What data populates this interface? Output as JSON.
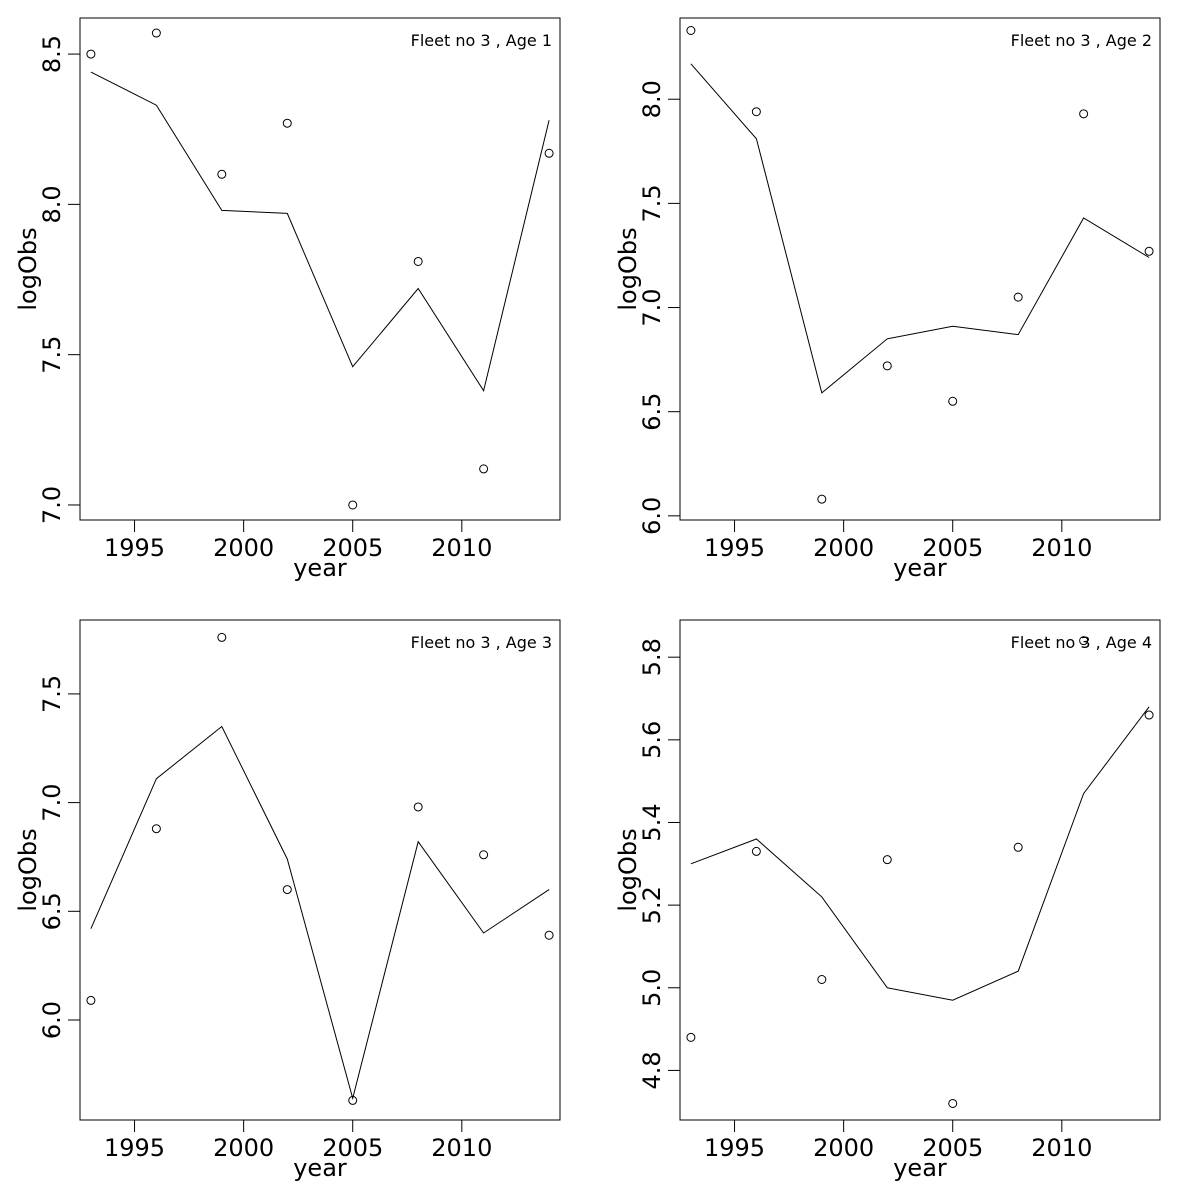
{
  "chart_data": [
    {
      "type": "scatter",
      "title": "Fleet no 3 , Age 1",
      "xlabel": "year",
      "ylabel": "logObs",
      "xlim": [
        1992.5,
        2014.5
      ],
      "ylim": [
        6.95,
        8.62
      ],
      "xticks": [
        1995,
        2000,
        2005,
        2010
      ],
      "yticks": [
        7.0,
        7.5,
        8.0,
        8.5
      ],
      "ytick_labels": [
        "7.0",
        "7.5",
        "8.0",
        "8.5"
      ],
      "series": [
        {
          "kind": "points",
          "x": [
            1993,
            1996,
            1999,
            2002,
            2005,
            2008,
            2011,
            2014
          ],
          "y": [
            8.5,
            8.57,
            8.1,
            8.27,
            7.0,
            7.81,
            7.12,
            8.17
          ]
        },
        {
          "kind": "line",
          "x": [
            1993,
            1996,
            1999,
            2002,
            2005,
            2008,
            2011,
            2014
          ],
          "y": [
            8.44,
            8.33,
            7.98,
            7.97,
            7.46,
            7.72,
            7.38,
            8.28
          ]
        }
      ]
    },
    {
      "type": "scatter",
      "title": "Fleet no 3 , Age 2",
      "xlabel": "year",
      "ylabel": "logObs",
      "xlim": [
        1992.5,
        2014.5
      ],
      "ylim": [
        5.98,
        8.39
      ],
      "xticks": [
        1995,
        2000,
        2005,
        2010
      ],
      "yticks": [
        6.0,
        6.5,
        7.0,
        7.5,
        8.0
      ],
      "ytick_labels": [
        "6.0",
        "6.5",
        "7.0",
        "7.5",
        "8.0"
      ],
      "series": [
        {
          "kind": "points",
          "x": [
            1993,
            1996,
            1999,
            2002,
            2005,
            2008,
            2011,
            2014
          ],
          "y": [
            8.33,
            7.94,
            6.08,
            6.72,
            6.55,
            7.05,
            7.93,
            7.27
          ]
        },
        {
          "kind": "line",
          "x": [
            1993,
            1996,
            1999,
            2002,
            2005,
            2008,
            2011,
            2014
          ],
          "y": [
            8.17,
            7.81,
            6.59,
            6.85,
            6.91,
            6.87,
            7.43,
            7.24
          ]
        }
      ]
    },
    {
      "type": "scatter",
      "title": "Fleet no 3 , Age 3",
      "xlabel": "year",
      "ylabel": "logObs",
      "xlim": [
        1992.5,
        2014.5
      ],
      "ylim": [
        5.54,
        7.84
      ],
      "xticks": [
        1995,
        2000,
        2005,
        2010
      ],
      "yticks": [
        6.0,
        6.5,
        7.0,
        7.5
      ],
      "ytick_labels": [
        "6.0",
        "6.5",
        "7.0",
        "7.5"
      ],
      "series": [
        {
          "kind": "points",
          "x": [
            1993,
            1996,
            1999,
            2002,
            2005,
            2008,
            2011,
            2014
          ],
          "y": [
            6.09,
            6.88,
            7.76,
            6.6,
            5.63,
            6.98,
            6.76,
            6.39
          ]
        },
        {
          "kind": "line",
          "x": [
            1993,
            1996,
            1999,
            2002,
            2005,
            2008,
            2011,
            2014
          ],
          "y": [
            6.42,
            7.11,
            7.35,
            6.74,
            5.64,
            6.82,
            6.4,
            6.6
          ]
        }
      ]
    },
    {
      "type": "scatter",
      "title": "Fleet no 3 , Age 4",
      "xlabel": "year",
      "ylabel": "logObs",
      "xlim": [
        1992.5,
        2014.5
      ],
      "ylim": [
        4.68,
        5.89
      ],
      "xticks": [
        1995,
        2000,
        2005,
        2010
      ],
      "yticks": [
        4.8,
        5.0,
        5.2,
        5.4,
        5.6,
        5.8
      ],
      "ytick_labels": [
        "4.8",
        "5.0",
        "5.2",
        "5.4",
        "5.6",
        "5.8"
      ],
      "series": [
        {
          "kind": "points",
          "x": [
            1993,
            1996,
            1999,
            2002,
            2005,
            2008,
            2011,
            2014
          ],
          "y": [
            4.88,
            5.33,
            5.02,
            5.31,
            4.72,
            5.34,
            5.84,
            5.66
          ]
        },
        {
          "kind": "line",
          "x": [
            1993,
            1996,
            1999,
            2002,
            2005,
            2008,
            2011,
            2014
          ],
          "y": [
            5.3,
            5.36,
            5.22,
            5.0,
            4.97,
            5.04,
            5.47,
            5.68
          ]
        }
      ]
    }
  ]
}
